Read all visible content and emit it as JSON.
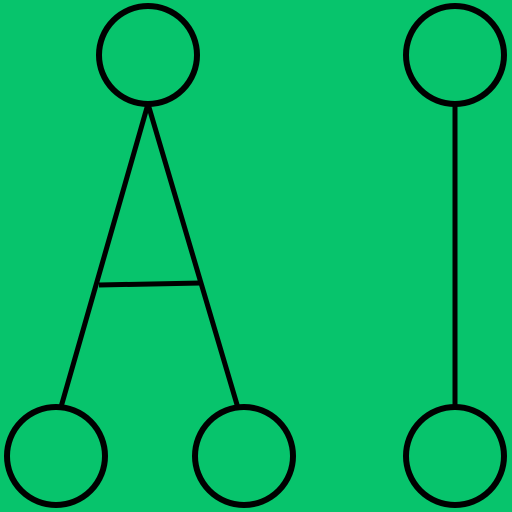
{
  "logo": {
    "letters": "AI",
    "background_color": "#07c46c",
    "stroke_color": "#000000"
  }
}
